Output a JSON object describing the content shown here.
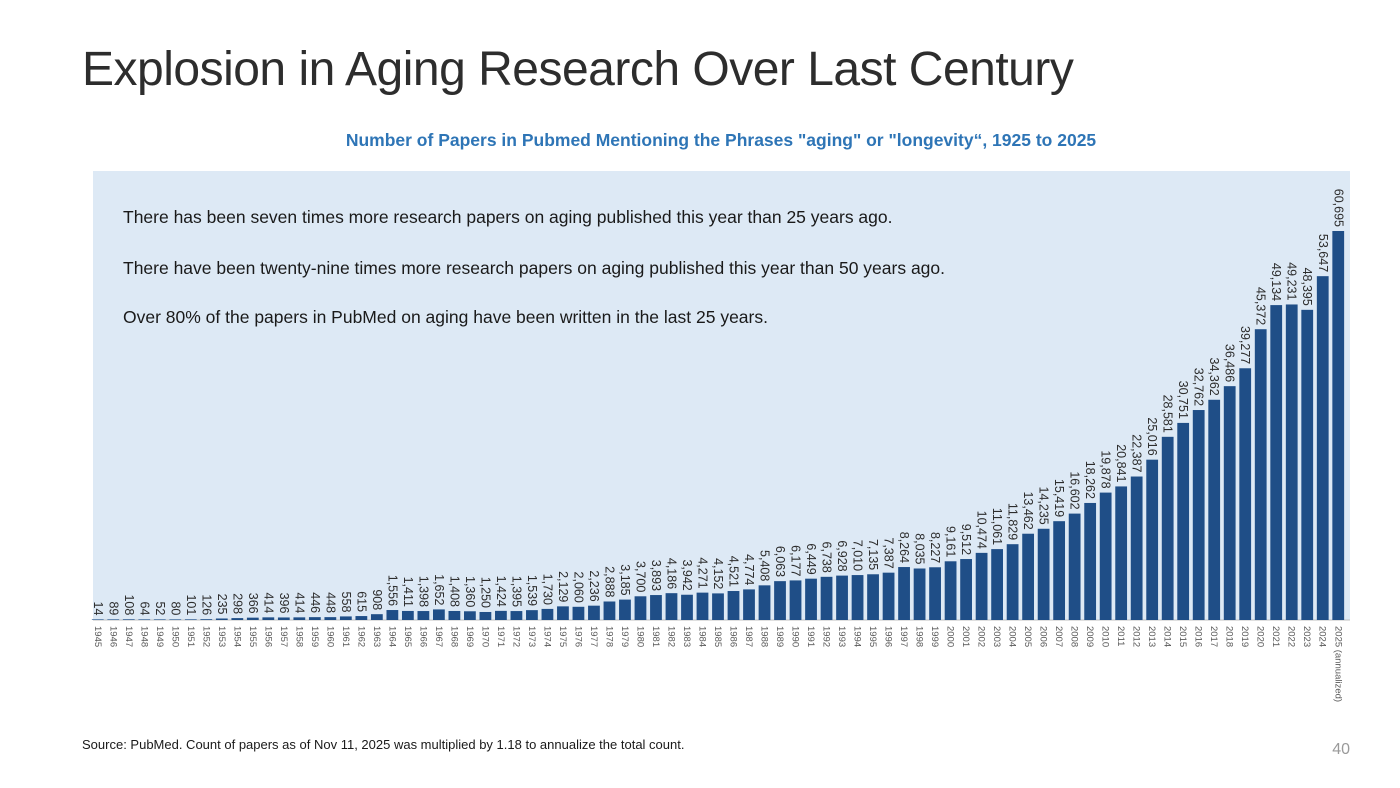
{
  "slide": {
    "title": "Explosion in Aging Research Over Last Century",
    "source": "Source: PubMed. Count of papers as of Nov 11, 2025 was multiplied by 1.18 to annualize the total count.",
    "page_number": "40"
  },
  "notes": [
    "There has been seven times more research papers on aging published this year than 25 years ago.",
    "There have been twenty-nine times more research papers on aging published this year than 50 years ago.",
    "Over 80% of the papers in PubMed on aging have been written in the last 25 years."
  ],
  "chart_data": {
    "type": "bar",
    "title": "Number of Papers in Pubmed Mentioning the Phrases \"aging\" or \"longevity“, 1925 to 2025",
    "xlabel": "",
    "ylabel": "",
    "ylim": [
      0,
      60695
    ],
    "colors": {
      "bar": "#1f4e87",
      "plot_background": "#dde9f5",
      "title": "#2e75b6"
    },
    "categories": [
      "1945",
      "1946",
      "1947",
      "1948",
      "1949",
      "1950",
      "1951",
      "1952",
      "1953",
      "1954",
      "1955",
      "1956",
      "1957",
      "1958",
      "1959",
      "1960",
      "1961",
      "1962",
      "1963",
      "1964",
      "1965",
      "1966",
      "1967",
      "1968",
      "1969",
      "1970",
      "1971",
      "1972",
      "1973",
      "1974",
      "1975",
      "1976",
      "1977",
      "1978",
      "1979",
      "1980",
      "1981",
      "1982",
      "1983",
      "1984",
      "1985",
      "1986",
      "1987",
      "1988",
      "1989",
      "1990",
      "1991",
      "1992",
      "1993",
      "1994",
      "1995",
      "1996",
      "1997",
      "1998",
      "1999",
      "2000",
      "2001",
      "2002",
      "2003",
      "2004",
      "2005",
      "2006",
      "2007",
      "2008",
      "2009",
      "2010",
      "2011",
      "2012",
      "2013",
      "2014",
      "2015",
      "2016",
      "2017",
      "2018",
      "2019",
      "2020",
      "2021",
      "2022",
      "2023",
      "2024",
      "2025 (annualized)"
    ],
    "values": [
      14,
      89,
      108,
      64,
      52,
      80,
      101,
      126,
      235,
      298,
      366,
      414,
      396,
      414,
      446,
      448,
      558,
      615,
      908,
      1556,
      1411,
      1398,
      1652,
      1408,
      1360,
      1250,
      1424,
      1395,
      1539,
      1730,
      2129,
      2060,
      2236,
      2888,
      3185,
      3700,
      3893,
      4186,
      3942,
      4271,
      4152,
      4521,
      4774,
      5408,
      6063,
      6177,
      6449,
      6738,
      6928,
      7010,
      7135,
      7387,
      8264,
      8035,
      8227,
      9161,
      9512,
      10474,
      11061,
      11829,
      13462,
      14235,
      15419,
      16602,
      18262,
      19878,
      20841,
      22387,
      25016,
      28581,
      30751,
      32762,
      34362,
      36486,
      39277,
      45372,
      49134,
      49231,
      48395,
      53647,
      60695
    ],
    "data_labels": [
      "14",
      "89",
      "108",
      "64",
      "52",
      "80",
      "101",
      "126",
      "235",
      "298",
      "366",
      "414",
      "396",
      "414",
      "446",
      "448",
      "558",
      "615",
      "908",
      "1,556",
      "1,411",
      "1,398",
      "1,652",
      "1,408",
      "1,360",
      "1,250",
      "1,424",
      "1,395",
      "1,539",
      "1,730",
      "2,129",
      "2,060",
      "2,236",
      "2,888",
      "3,185",
      "3,700",
      "3,893",
      "4,186",
      "3,942",
      "4,271",
      "4,152",
      "4,521",
      "4,774",
      "5,408",
      "6,063",
      "6,177",
      "6,449",
      "6,738",
      "6,928",
      "7,010",
      "7,135",
      "7,387",
      "8,264",
      "8,035",
      "8,227",
      "9,161",
      "9,512",
      "10,474",
      "11,061",
      "11,829",
      "13,462",
      "14,235",
      "15,419",
      "16,602",
      "18,262",
      "19,878",
      "20,841",
      "22,387",
      "25,016",
      "28,581",
      "30,751",
      "32,762",
      "34,362",
      "36,486",
      "39,277",
      "45,372",
      "49,134",
      "49,231",
      "48,395",
      "53,647",
      "60,695"
    ]
  }
}
